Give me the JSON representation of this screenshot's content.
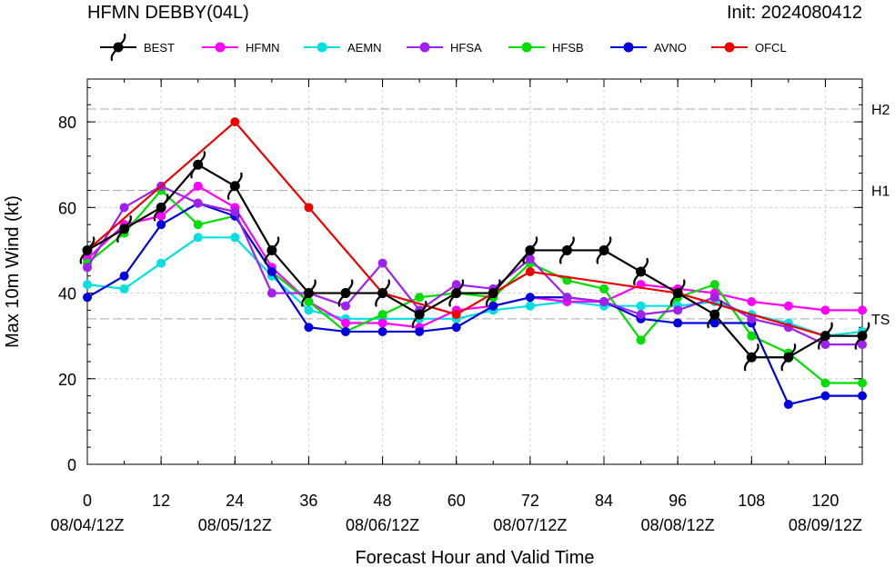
{
  "header": {
    "title": "HFMN DEBBY(04L)",
    "init": "Init: 2024080412"
  },
  "chart_data": {
    "type": "line",
    "xlabel": "Forecast Hour and Valid Time",
    "ylabel": "Max 10m Wind (kt)",
    "xlim": [
      0,
      126
    ],
    "ylim": [
      0,
      90
    ],
    "grid": true,
    "legend_position": "top",
    "x_ticks": [
      0,
      12,
      24,
      36,
      48,
      60,
      72,
      84,
      96,
      108,
      120
    ],
    "x_date_labels": [
      {
        "x": 0,
        "label": "08/04/12Z"
      },
      {
        "x": 24,
        "label": "08/05/12Z"
      },
      {
        "x": 48,
        "label": "08/06/12Z"
      },
      {
        "x": 72,
        "label": "08/07/12Z"
      },
      {
        "x": 96,
        "label": "08/08/12Z"
      },
      {
        "x": 120,
        "label": "08/09/12Z"
      }
    ],
    "y_ticks": [
      0,
      20,
      40,
      60,
      80
    ],
    "categories_lines": [
      {
        "label": "TS",
        "value": 34
      },
      {
        "label": "H1",
        "value": 64
      },
      {
        "label": "H2",
        "value": 83
      }
    ],
    "series": [
      {
        "name": "BEST",
        "color": "#000000",
        "marker": "hurricane-symbol",
        "x": [
          0,
          6,
          12,
          18,
          24,
          30,
          36,
          42,
          48,
          54,
          60,
          66,
          72,
          78,
          84,
          90,
          96,
          102,
          108,
          114,
          120,
          126
        ],
        "y": [
          50,
          55,
          60,
          70,
          65,
          50,
          40,
          40,
          40,
          35,
          40,
          40,
          50,
          50,
          50,
          45,
          40,
          35,
          25,
          25,
          30,
          30
        ]
      },
      {
        "name": "HFMN",
        "color": "#ff00ff",
        "marker": "circle",
        "x": [
          0,
          6,
          12,
          18,
          24,
          30,
          36,
          42,
          48,
          54,
          60,
          66,
          72,
          78,
          84,
          90,
          96,
          102,
          108,
          114,
          120,
          126
        ],
        "y": [
          48,
          56,
          58,
          65,
          60,
          46,
          38,
          33,
          33,
          32,
          36,
          37,
          39,
          38,
          38,
          42,
          41,
          40,
          38,
          37,
          36,
          36
        ]
      },
      {
        "name": "AEMN",
        "color": "#00e0e0",
        "marker": "circle",
        "x": [
          0,
          6,
          12,
          18,
          24,
          30,
          36,
          42,
          48,
          54,
          60,
          66,
          72,
          78,
          84,
          90,
          96,
          102,
          108,
          114,
          120,
          126
        ],
        "y": [
          42,
          41,
          47,
          53,
          53,
          44,
          36,
          34,
          34,
          34,
          34,
          36,
          37,
          38,
          37,
          37,
          37,
          38,
          35,
          33,
          30,
          31
        ]
      },
      {
        "name": "HFSA",
        "color": "#a020f0",
        "marker": "circle",
        "x": [
          0,
          6,
          12,
          18,
          24,
          30,
          36,
          42,
          48,
          54,
          60,
          66,
          72,
          78,
          84,
          90,
          96,
          102,
          108,
          114,
          120,
          126
        ],
        "y": [
          46,
          60,
          65,
          61,
          59,
          40,
          40,
          37,
          47,
          36,
          42,
          41,
          48,
          39,
          38,
          35,
          36,
          39,
          34,
          32,
          28,
          28
        ]
      },
      {
        "name": "HFSB",
        "color": "#00dd00",
        "marker": "circle",
        "x": [
          0,
          6,
          12,
          18,
          24,
          30,
          36,
          42,
          48,
          54,
          60,
          66,
          72,
          78,
          84,
          90,
          96,
          102,
          108,
          114,
          120,
          126
        ],
        "y": [
          47,
          54,
          64,
          56,
          58,
          45,
          38,
          31,
          35,
          39,
          40,
          39,
          47,
          43,
          41,
          29,
          39,
          42,
          30,
          26,
          19,
          19
        ]
      },
      {
        "name": "AVNO",
        "color": "#0000dd",
        "marker": "circle",
        "x": [
          0,
          6,
          12,
          18,
          24,
          30,
          36,
          42,
          48,
          54,
          60,
          66,
          72,
          78,
          84,
          90,
          96,
          102,
          108,
          114,
          120,
          126
        ],
        "y": [
          39,
          44,
          56,
          61,
          58,
          45,
          32,
          31,
          31,
          31,
          32,
          37,
          39,
          39,
          38,
          34,
          33,
          33,
          33,
          14,
          16,
          16
        ]
      },
      {
        "name": "OFCL",
        "color": "#ee0000",
        "marker": "circle",
        "x": [
          0,
          24,
          36,
          48,
          60,
          72,
          96,
          120
        ],
        "y": [
          50,
          80,
          60,
          40,
          35,
          45,
          40,
          30
        ]
      }
    ]
  }
}
